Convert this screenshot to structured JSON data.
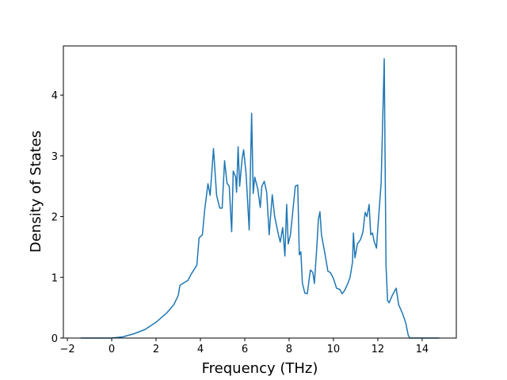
{
  "chart_data": {
    "type": "line",
    "x_label": "Frequency (THz)",
    "y_label": "Density of States",
    "x": [
      -1.4,
      0,
      0.5,
      1.0,
      1.5,
      2.0,
      2.5,
      2.8,
      3.0,
      3.08,
      3.44,
      3.58,
      3.84,
      3.94,
      4.09,
      4.19,
      4.34,
      4.44,
      4.59,
      4.73,
      4.87,
      4.98,
      5.09,
      5.2,
      5.3,
      5.41,
      5.48,
      5.59,
      5.63,
      5.7,
      5.77,
      5.88,
      5.95,
      6.06,
      6.2,
      6.31,
      6.38,
      6.45,
      6.59,
      6.7,
      6.77,
      6.88,
      6.99,
      7.1,
      7.24,
      7.35,
      7.49,
      7.6,
      7.71,
      7.81,
      7.89,
      7.96,
      8.06,
      8.17,
      8.28,
      8.39,
      8.46,
      8.53,
      8.6,
      8.71,
      8.82,
      8.96,
      9.07,
      9.14,
      9.25,
      9.32,
      9.39,
      9.46,
      9.61,
      9.75,
      9.86,
      10.0,
      10.14,
      10.29,
      10.39,
      10.5,
      10.65,
      10.75,
      10.86,
      10.9,
      10.97,
      11.08,
      11.22,
      11.33,
      11.43,
      11.51,
      11.61,
      11.68,
      11.76,
      11.83,
      11.94,
      12.0,
      12.15,
      12.29,
      12.37,
      12.44,
      12.51,
      12.65,
      12.83,
      12.94,
      13.12,
      13.26,
      13.37,
      13.44,
      14.77
    ],
    "series": [
      {
        "color": "#1f77b4",
        "values": [
          0,
          0,
          0.02,
          0.07,
          0.14,
          0.26,
          0.42,
          0.55,
          0.7,
          0.87,
          0.95,
          1.05,
          1.2,
          1.65,
          1.7,
          2.1,
          2.54,
          2.35,
          3.12,
          2.35,
          2.14,
          2.14,
          2.92,
          2.55,
          2.5,
          1.75,
          2.75,
          2.65,
          2.4,
          3.15,
          2.5,
          2.95,
          3.1,
          2.7,
          1.78,
          3.7,
          2.38,
          2.65,
          2.45,
          2.15,
          2.5,
          2.58,
          2.4,
          1.7,
          2.36,
          2.0,
          1.75,
          1.58,
          1.82,
          1.35,
          2.2,
          1.55,
          1.7,
          2.1,
          2.5,
          2.52,
          1.37,
          1.42,
          0.9,
          0.74,
          0.73,
          1.12,
          1.08,
          0.9,
          1.5,
          1.95,
          2.08,
          1.7,
          1.4,
          1.1,
          1.08,
          0.98,
          0.82,
          0.8,
          0.73,
          0.78,
          0.9,
          1.0,
          1.25,
          1.73,
          1.32,
          1.55,
          1.62,
          1.75,
          2.07,
          2.0,
          2.2,
          1.7,
          1.73,
          1.6,
          1.48,
          1.8,
          2.55,
          4.6,
          1.2,
          0.62,
          0.58,
          0.7,
          0.82,
          0.55,
          0.4,
          0.25,
          0.05,
          0,
          0
        ]
      }
    ],
    "xlim": [
      -2.18,
      15.54
    ],
    "ylim": [
      0,
      4.81
    ],
    "xticks": [
      {
        "value": -2,
        "label": "−2"
      },
      0,
      2,
      4,
      6,
      8,
      10,
      12,
      14
    ],
    "yticks": [
      0,
      1,
      2,
      3,
      4
    ]
  }
}
